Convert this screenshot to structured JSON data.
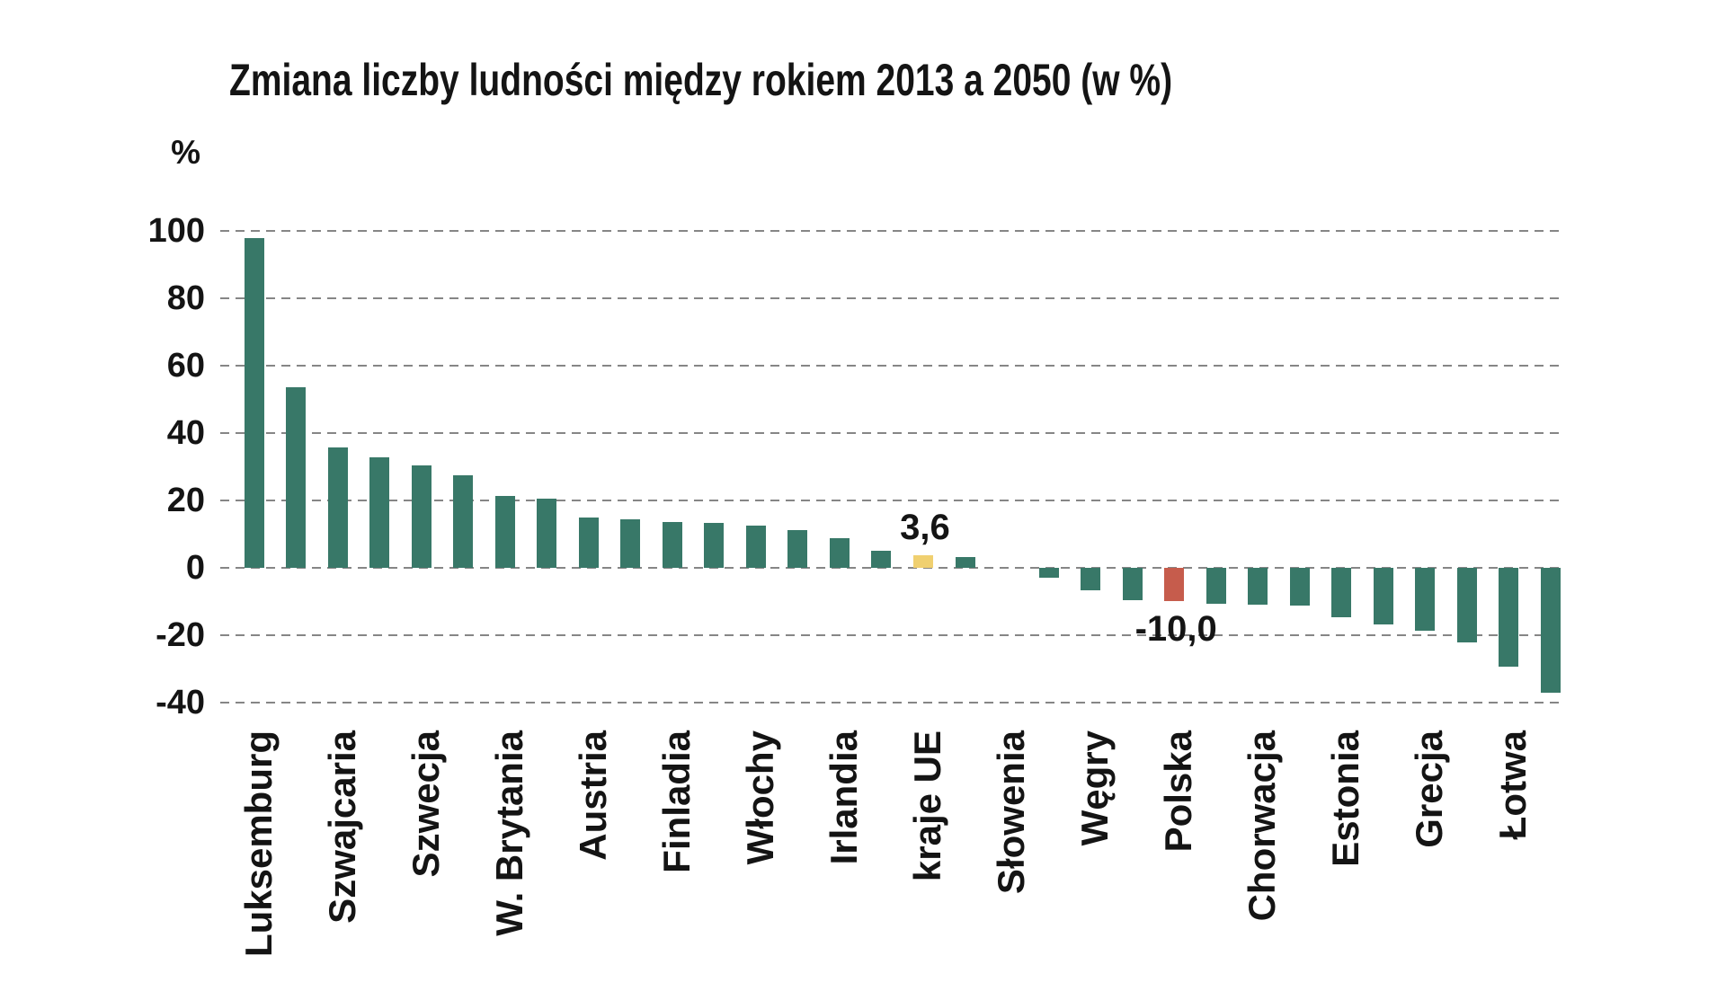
{
  "page": {
    "background": "#ffffff",
    "text_color": "#141414",
    "gridline_color": "#868686"
  },
  "chart_data": {
    "type": "bar",
    "title": "Zmiana liczby ludności między rokiem 2013 a 2050 (w %)",
    "ylabel": "%",
    "xlabel": "",
    "ylim": [
      -40,
      100
    ],
    "yticks": [
      100,
      80,
      60,
      40,
      20,
      0,
      -20,
      -40
    ],
    "grid": "horizontal-dashed",
    "legend": "none",
    "palette": {
      "teal": "#387868",
      "yellow": "#f0d070",
      "red": "#c65c4c"
    },
    "bars": [
      {
        "label": "Luksemburg",
        "value": 98.0,
        "color": "teal"
      },
      {
        "label": "",
        "value": 53.6,
        "color": "teal"
      },
      {
        "label": "Szwajcaria",
        "value": 35.6,
        "color": "teal"
      },
      {
        "label": "",
        "value": 32.7,
        "color": "teal"
      },
      {
        "label": "Szwecja",
        "value": 30.3,
        "color": "teal"
      },
      {
        "label": "",
        "value": 27.3,
        "color": "teal"
      },
      {
        "label": "W. Brytania",
        "value": 21.4,
        "color": "teal"
      },
      {
        "label": "",
        "value": 20.6,
        "color": "teal"
      },
      {
        "label": "Austria",
        "value": 14.9,
        "color": "teal"
      },
      {
        "label": "",
        "value": 14.2,
        "color": "teal"
      },
      {
        "label": "Finladia",
        "value": 13.5,
        "color": "teal"
      },
      {
        "label": "",
        "value": 13.2,
        "color": "teal"
      },
      {
        "label": "Włochy",
        "value": 12.4,
        "color": "teal"
      },
      {
        "label": "",
        "value": 11.2,
        "color": "teal"
      },
      {
        "label": "Irlandia",
        "value": 8.8,
        "color": "teal"
      },
      {
        "label": "",
        "value": 5.0,
        "color": "teal"
      },
      {
        "label": "kraje UE",
        "value": 3.6,
        "color": "yellow"
      },
      {
        "label": "",
        "value": 3.0,
        "color": "teal"
      },
      {
        "label": "Słowenia",
        "value": 0.0,
        "color": "teal"
      },
      {
        "label": "",
        "value": -3.0,
        "color": "teal"
      },
      {
        "label": "Węgry",
        "value": -6.8,
        "color": "teal"
      },
      {
        "label": "",
        "value": -9.7,
        "color": "teal"
      },
      {
        "label": "Polska",
        "value": -10.0,
        "color": "red"
      },
      {
        "label": "",
        "value": -10.7,
        "color": "teal"
      },
      {
        "label": "Chorwacja",
        "value": -11.0,
        "color": "teal"
      },
      {
        "label": "",
        "value": -11.2,
        "color": "teal"
      },
      {
        "label": "Estonia",
        "value": -14.8,
        "color": "teal"
      },
      {
        "label": "",
        "value": -17.0,
        "color": "teal"
      },
      {
        "label": "Grecja",
        "value": -18.8,
        "color": "teal"
      },
      {
        "label": "",
        "value": -22.2,
        "color": "teal"
      },
      {
        "label": "Łotwa",
        "value": -29.5,
        "color": "teal"
      },
      {
        "label": "",
        "value": -37.2,
        "color": "teal"
      }
    ],
    "annotations": [
      {
        "text": "3,6",
        "bar_label": "kraje UE",
        "position": "above"
      },
      {
        "text": "-10,0",
        "bar_label": "Polska",
        "position": "below"
      }
    ]
  }
}
